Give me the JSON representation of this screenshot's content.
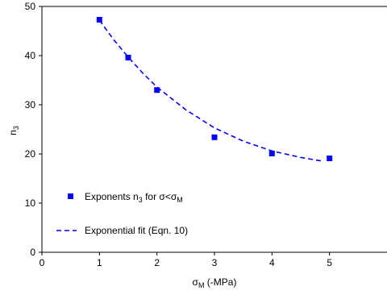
{
  "chart_data": {
    "type": "scatter",
    "xlim": [
      0,
      6
    ],
    "ylim": [
      0,
      50
    ],
    "x_ticks": [
      0,
      1,
      2,
      3,
      4,
      5
    ],
    "y_ticks": [
      0,
      10,
      20,
      30,
      40,
      50
    ],
    "x_tick_labels": [
      "0",
      "1",
      "2",
      "3",
      "4",
      "5"
    ],
    "y_tick_labels": [
      "0",
      "10",
      "20",
      "30",
      "40",
      "50"
    ],
    "xlabel": {
      "main": "σ",
      "sub": "M",
      "suffix": " (-MPa)"
    },
    "ylabel": {
      "main": "n",
      "sub": "3"
    },
    "grid": false,
    "legend_position": "bottom-left",
    "series": [
      {
        "name": {
          "pre": "Exponents n",
          "sub1": "3",
          "mid": " for σ<σ",
          "sub2": "M"
        },
        "kind": "scatter",
        "color": "#0000ff",
        "points": [
          {
            "x": 1.0,
            "y": 47.3
          },
          {
            "x": 1.5,
            "y": 39.6
          },
          {
            "x": 2.0,
            "y": 33.0
          },
          {
            "x": 3.0,
            "y": 23.4
          },
          {
            "x": 4.0,
            "y": 20.1
          },
          {
            "x": 5.0,
            "y": 19.1
          }
        ]
      },
      {
        "name": "Exponential fit (Eqn. 10)",
        "kind": "line",
        "style": "dashed",
        "color": "#0000ff",
        "points": [
          {
            "x": 1.0,
            "y": 47.2
          },
          {
            "x": 1.25,
            "y": 43.2
          },
          {
            "x": 1.5,
            "y": 39.7
          },
          {
            "x": 1.75,
            "y": 36.5
          },
          {
            "x": 2.0,
            "y": 33.6
          },
          {
            "x": 2.5,
            "y": 29.0
          },
          {
            "x": 3.0,
            "y": 25.3
          },
          {
            "x": 3.5,
            "y": 22.6
          },
          {
            "x": 4.0,
            "y": 20.6
          },
          {
            "x": 4.5,
            "y": 19.3
          },
          {
            "x": 4.9,
            "y": 18.5
          }
        ]
      }
    ]
  }
}
